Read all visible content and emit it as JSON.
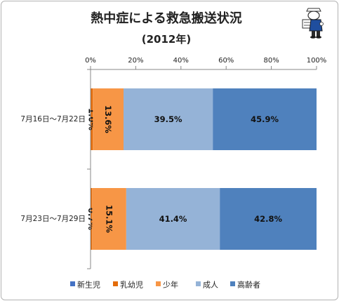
{
  "chart_data": {
    "type": "bar",
    "orientation": "horizontal",
    "stacked": "percent",
    "title": "熱中症による救急搬送状況",
    "subtitle": "(2012年)",
    "categories": [
      "7月16日～7月22日",
      "7月23日～7月29日"
    ],
    "series": [
      {
        "name": "新生児",
        "values": [
          0.0,
          0.0
        ],
        "color": "#4472c4"
      },
      {
        "name": "乳幼児",
        "values": [
          1.0,
          0.7
        ],
        "color": "#e36c0a"
      },
      {
        "name": "少年",
        "values": [
          13.6,
          15.1
        ],
        "color": "#f79646"
      },
      {
        "name": "成人",
        "values": [
          39.5,
          41.4
        ],
        "color": "#95b3d7"
      },
      {
        "name": "高齢者",
        "values": [
          45.9,
          42.8
        ],
        "color": "#4f81bd"
      }
    ],
    "data_labels": [
      [
        "",
        "1.0%",
        "13.6%",
        "39.5%",
        "45.9%"
      ],
      [
        "",
        "0.7%",
        "15.1%",
        "41.4%",
        "42.8%"
      ]
    ],
    "x_ticks": [
      "0%",
      "20%",
      "40%",
      "60%",
      "80%",
      "100%"
    ],
    "xlim": [
      0,
      100
    ],
    "grid": false,
    "legend_position": "bottom"
  },
  "mascot": {
    "icon": "newspaper-reader-mascot-icon"
  }
}
